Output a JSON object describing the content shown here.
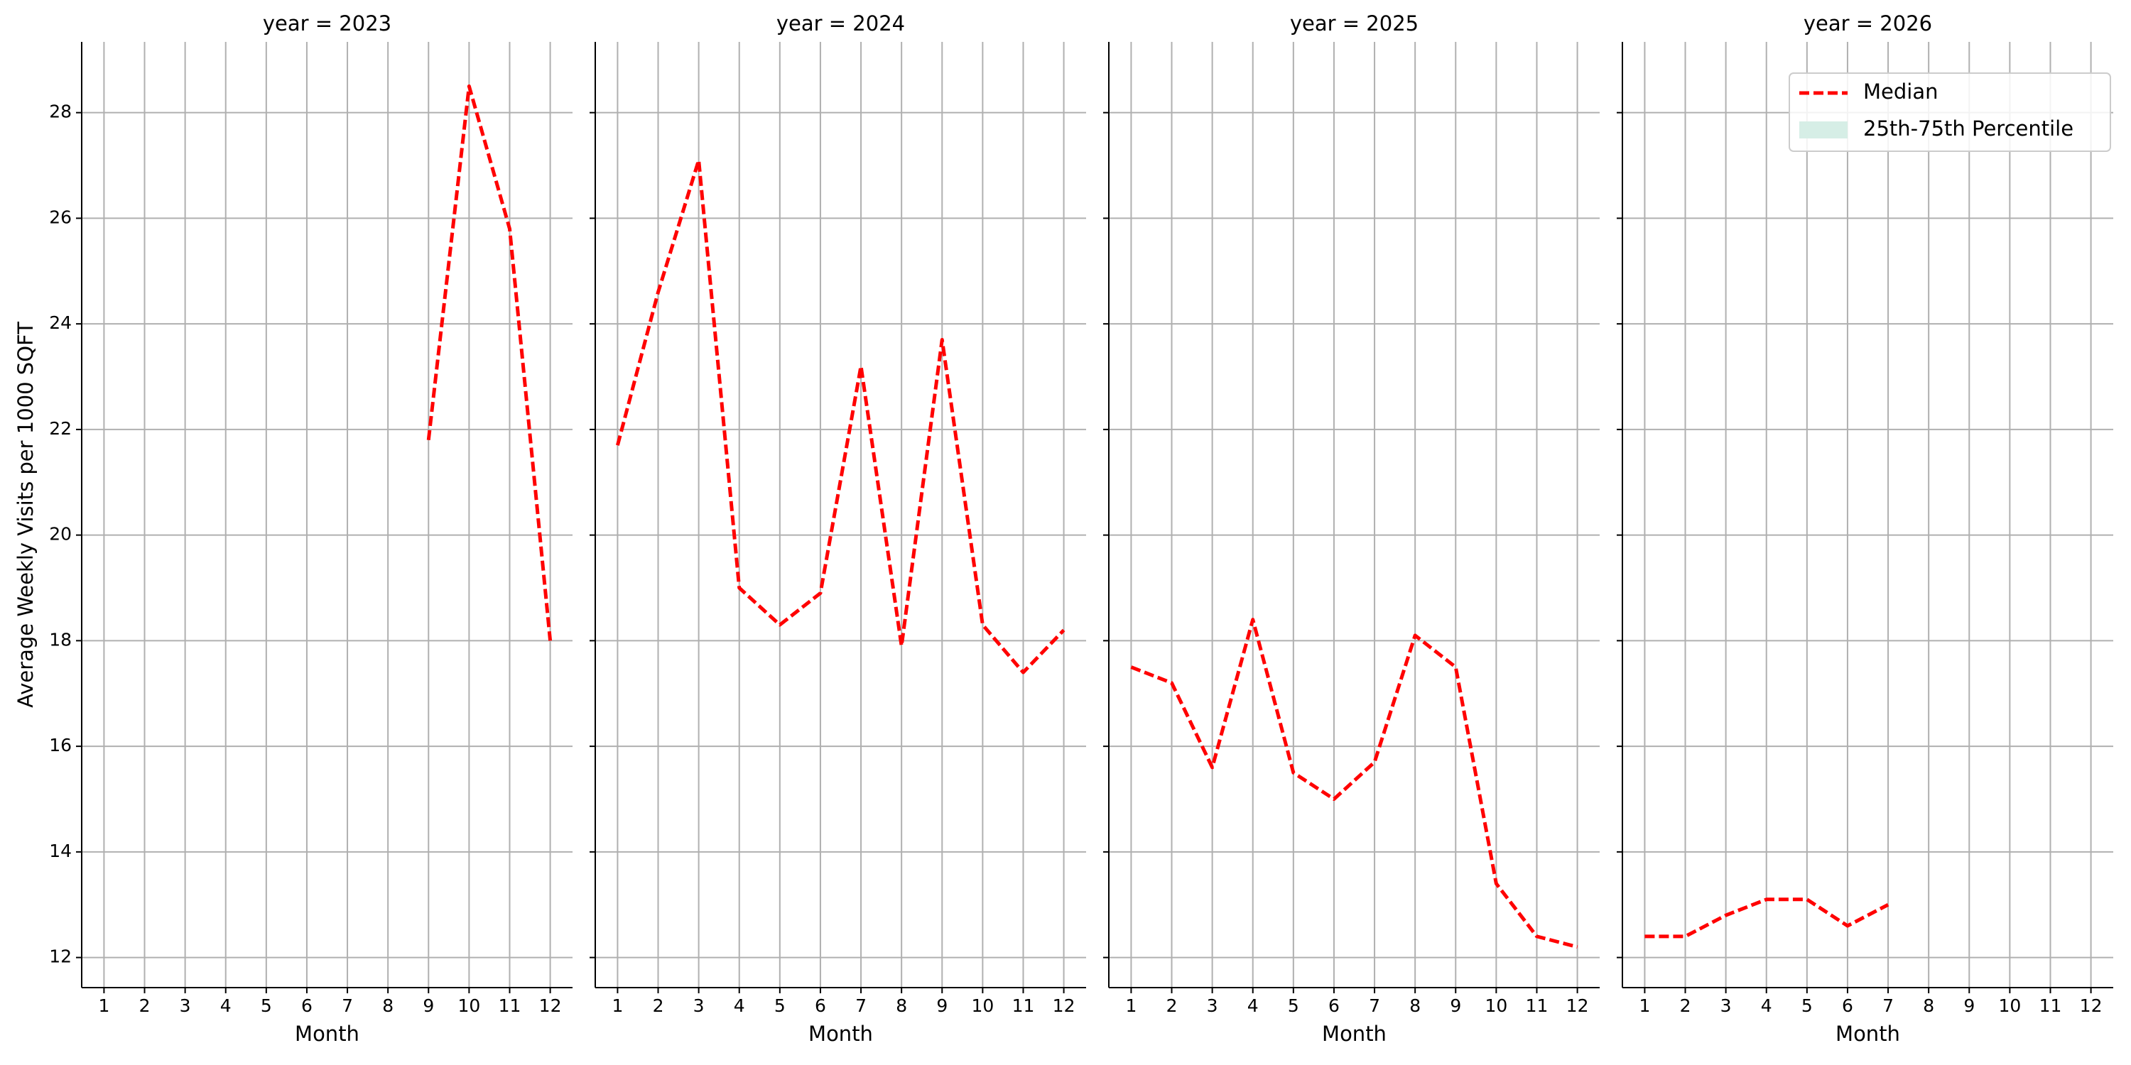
{
  "chart_data": [
    {
      "type": "line",
      "title": "year = 2023",
      "xlabel": "Month",
      "ylabel": "Average Weekly Visits per 1000 SQFT",
      "x": [
        9,
        10,
        11,
        12
      ],
      "series": [
        {
          "color": "#ff0000",
          "values": [
            21.8,
            28.5,
            25.8,
            18.0
          ]
        }
      ],
      "xlim": [
        0.45,
        12.55
      ],
      "ylim": [
        11.43,
        29.34
      ],
      "xticks": [
        1,
        2,
        3,
        4,
        5,
        6,
        7,
        8,
        9,
        10,
        11,
        12
      ],
      "yticks": [
        12,
        14,
        16,
        18,
        20,
        22,
        24,
        26,
        28
      ],
      "grid": true
    },
    {
      "type": "line",
      "title": "year = 2024",
      "xlabel": "Month",
      "x": [
        1,
        2,
        3,
        4,
        5,
        6,
        7,
        8,
        9,
        10,
        11,
        12
      ],
      "series": [
        {
          "color": "#ff0000",
          "values": [
            21.7,
            24.6,
            27.1,
            19.0,
            18.3,
            18.9,
            23.2,
            17.9,
            23.7,
            18.3,
            17.4,
            18.2
          ]
        }
      ],
      "xlim": [
        0.45,
        12.55
      ],
      "ylim": [
        11.43,
        29.34
      ],
      "xticks": [
        1,
        2,
        3,
        4,
        5,
        6,
        7,
        8,
        9,
        10,
        11,
        12
      ],
      "yticks": [
        12,
        14,
        16,
        18,
        20,
        22,
        24,
        26,
        28
      ],
      "grid": true
    },
    {
      "type": "line",
      "title": "year = 2025",
      "xlabel": "Month",
      "x": [
        1,
        2,
        3,
        4,
        5,
        6,
        7,
        8,
        9,
        10,
        11,
        12
      ],
      "series": [
        {
          "color": "#ff0000",
          "values": [
            17.5,
            17.2,
            15.6,
            18.4,
            15.5,
            15.0,
            15.7,
            18.1,
            17.5,
            13.4,
            12.4,
            12.2
          ]
        }
      ],
      "xlim": [
        0.45,
        12.55
      ],
      "ylim": [
        11.43,
        29.34
      ],
      "xticks": [
        1,
        2,
        3,
        4,
        5,
        6,
        7,
        8,
        9,
        10,
        11,
        12
      ],
      "yticks": [
        12,
        14,
        16,
        18,
        20,
        22,
        24,
        26,
        28
      ],
      "grid": true
    },
    {
      "type": "line",
      "title": "year = 2026",
      "xlabel": "Month",
      "x": [
        1,
        2,
        3,
        4,
        5,
        6,
        7
      ],
      "series": [
        {
          "name": "Median",
          "color": "#ff0000",
          "values": [
            12.4,
            12.4,
            12.8,
            13.1,
            13.1,
            12.6,
            13.0
          ]
        }
      ],
      "band": {
        "name": "25th-75th Percentile",
        "color": "#d6eee6"
      },
      "legend_loc": "upper right",
      "xlim": [
        0.45,
        12.55
      ],
      "ylim": [
        11.43,
        29.34
      ],
      "xticks": [
        1,
        2,
        3,
        4,
        5,
        6,
        7,
        8,
        9,
        10,
        11,
        12
      ],
      "yticks": [
        12,
        14,
        16,
        18,
        20,
        22,
        24,
        26,
        28
      ],
      "grid": true
    }
  ]
}
